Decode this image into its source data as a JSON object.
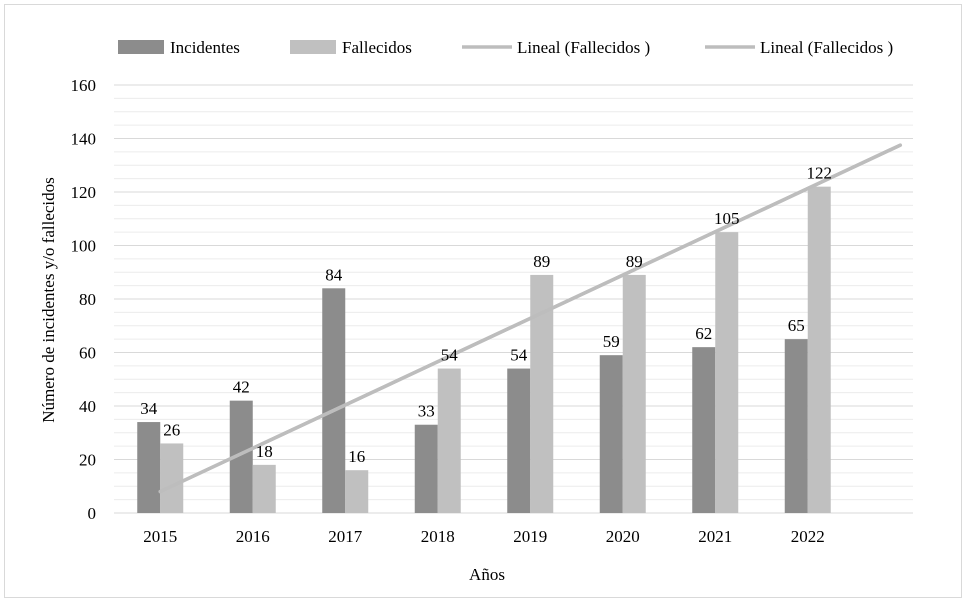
{
  "colors": {
    "incidentes": "#8c8c8c",
    "fallecidos": "#c0c0c0",
    "trend": "#bdbdbd",
    "grid": "#d9d9d9",
    "border": "#d9d9d9"
  },
  "chart_data": {
    "type": "bar",
    "title": "",
    "xlabel": "Años",
    "ylabel": "Número de incidentes y/o fallecidos",
    "categories": [
      "2015",
      "2016",
      "2017",
      "2018",
      "2019",
      "2020",
      "2021",
      "2022"
    ],
    "series": [
      {
        "name": "Incidentes",
        "values": [
          34,
          42,
          84,
          33,
          54,
          59,
          62,
          65
        ]
      },
      {
        "name": "Fallecidos",
        "values": [
          26,
          18,
          16,
          54,
          89,
          89,
          105,
          122
        ]
      }
    ],
    "trendlines": [
      {
        "name": "Lineal (Fallecidos )",
        "type": "linear",
        "start": 8,
        "end": 137.5
      },
      {
        "name": "Lineal (Fallecidos )",
        "type": "linear",
        "start": 8,
        "end": 137.5
      }
    ],
    "ylim": [
      0,
      160
    ],
    "yticks": [
      0,
      20,
      40,
      60,
      80,
      100,
      120,
      140,
      160
    ],
    "grid": true,
    "legend_position": "top"
  }
}
